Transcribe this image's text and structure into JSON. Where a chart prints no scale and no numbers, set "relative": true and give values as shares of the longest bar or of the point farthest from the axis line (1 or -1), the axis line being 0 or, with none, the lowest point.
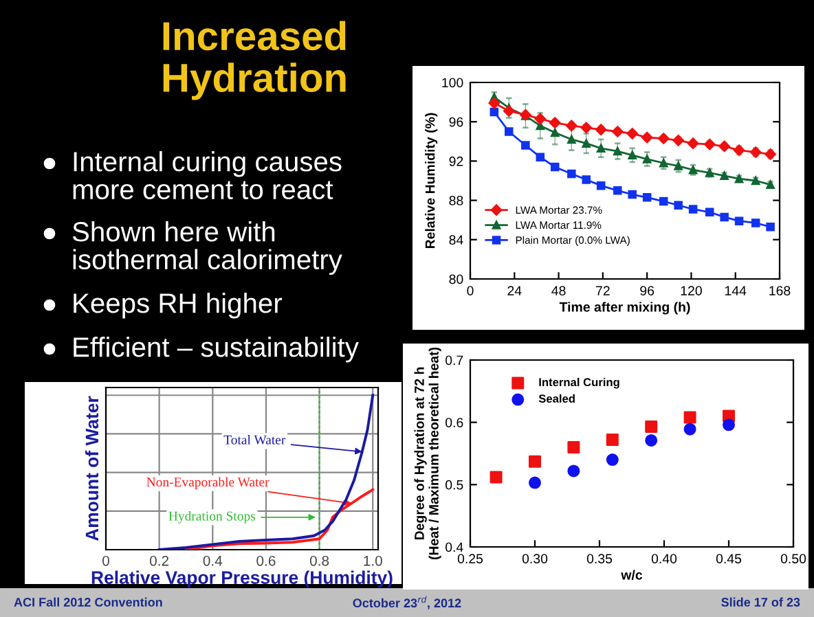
{
  "chart_data": [
    {
      "type": "other",
      "title": "Increased\nHydration",
      "annotations": [
        "Internal curing causes\nmore cement to react",
        "Shown here with\nisothermal calorimetry",
        "Keeps RH higher",
        "Efficient – sustainability",
        "ACI Fall 2012 Convention",
        "October 23$^{rd}$, 2012",
        "Slide 17 of 23"
      ]
    },
    {
      "type": "line",
      "xlabel": "Time after mixing (h)",
      "ylabel": "Relative Humidity (%)",
      "xlim": [
        0,
        168
      ],
      "xticks": [
        0,
        24,
        48,
        72,
        96,
        120,
        144,
        168
      ],
      "ylim": [
        80,
        100
      ],
      "yticks": [
        80,
        84,
        88,
        92,
        96,
        100
      ],
      "legend": "bottom left",
      "x": [
        13,
        21,
        30,
        38,
        46,
        55,
        63,
        71,
        80,
        88,
        96,
        105,
        113,
        121,
        130,
        138,
        146,
        155,
        163
      ],
      "series": [
        {
          "name": "LWA Mortar 23.7%",
          "color": "#ee1111",
          "marker": "diamond",
          "values": [
            97.9,
            97.1,
            96.7,
            96.3,
            95.9,
            95.6,
            95.4,
            95.2,
            95.0,
            94.8,
            94.4,
            94.3,
            94.1,
            93.8,
            93.7,
            93.5,
            93.1,
            92.9,
            92.7
          ],
          "errors": [
            0.3,
            0.3,
            0.3,
            0.3,
            0.3,
            0.3,
            0.3,
            0.3,
            0.3,
            0.3,
            0.3,
            0.3,
            0.3,
            0.3,
            0.3,
            0.3,
            0.4,
            0.4,
            0.4
          ]
        },
        {
          "name": "LWA Mortar 11.9%",
          "color": "#116633",
          "marker": "triangle",
          "values": [
            98.5,
            97.4,
            96.6,
            95.6,
            94.9,
            94.2,
            93.8,
            93.3,
            93.0,
            92.6,
            92.2,
            91.8,
            91.5,
            91.1,
            90.8,
            90.5,
            90.2,
            90.0,
            89.6
          ],
          "errors": [
            0.5,
            1.0,
            1.2,
            1.3,
            1.2,
            1.1,
            1.0,
            0.9,
            0.8,
            0.7,
            0.7,
            0.6,
            0.6,
            0.5,
            0.4,
            0.3,
            0.3,
            0.3,
            0.3
          ]
        },
        {
          "name": "Plain Mortar (0.0% LWA)",
          "color": "#1133ee",
          "marker": "square",
          "values": [
            97.0,
            95.0,
            93.6,
            92.4,
            91.4,
            90.7,
            90.1,
            89.5,
            89.0,
            88.6,
            88.3,
            87.9,
            87.5,
            87.1,
            86.8,
            86.3,
            85.9,
            85.7,
            85.3
          ],
          "errors": [
            0.3,
            0.3,
            0.3,
            0.3,
            0.3,
            0.3,
            0.3,
            0.3,
            0.3,
            0.3,
            0.3,
            0.3,
            0.3,
            0.3,
            0.3,
            0.3,
            0.3,
            0.3,
            0.3
          ]
        }
      ]
    },
    {
      "type": "line",
      "relative": true,
      "xlabel": "Relative Vapor Pressure (Humidity)",
      "ylabel": "Amount of Water",
      "xlim": [
        0,
        1.02
      ],
      "xticks": [
        0,
        0.2,
        0.4,
        0.6,
        0.8,
        {
          "value": 1.0,
          "label": "1.0"
        }
      ],
      "tick_labels": "x",
      "grid": true,
      "ref_lines": [
        {
          "axis": "x",
          "value": 0.8,
          "label": "Hydration Stops",
          "color": "#33bb33",
          "line_style": "dotted"
        }
      ],
      "series": [
        {
          "name": "Total Water",
          "color": "#1a1aa0",
          "x": [
            0.2,
            0.3,
            0.4,
            0.5,
            0.6,
            0.7,
            0.78,
            0.82,
            0.85,
            0.88,
            0.9,
            0.93,
            0.96,
            0.98,
            1.0
          ],
          "values": [
            0,
            0.014,
            0.034,
            0.054,
            0.062,
            0.07,
            0.09,
            0.127,
            0.183,
            0.268,
            0.324,
            0.45,
            0.634,
            0.775,
            1.0
          ]
        },
        {
          "name": "Non-Evaporable Water",
          "color": "#ff1a1a",
          "x": [
            0.3,
            0.4,
            0.5,
            0.6,
            0.7,
            0.8,
            0.83,
            0.85,
            0.88,
            0.92,
            0.96,
            1.0
          ],
          "values": [
            0,
            0.025,
            0.039,
            0.042,
            0.048,
            0.07,
            0.127,
            0.211,
            0.254,
            0.3,
            0.346,
            0.389
          ]
        }
      ]
    },
    {
      "type": "scatter",
      "xlabel": "w/c",
      "ylabel": "Degree of Hydration at 72 h\n(Heat / Maximum theoretical heat)",
      "xlim": [
        0.25,
        0.5
      ],
      "xticks": [
        0.25,
        {
          "value": 0.3,
          "label": "0.30"
        },
        0.35,
        {
          "value": 0.4,
          "label": "0.40"
        },
        0.45,
        {
          "value": 0.5,
          "label": "0.50"
        }
      ],
      "ylim": [
        0.4,
        0.7
      ],
      "yticks": [
        0.4,
        0.5,
        0.6,
        0.7
      ],
      "legend": "top left",
      "series": [
        {
          "name": "Internal Curing",
          "color": "#ee1111",
          "marker": "square",
          "x": [
            0.27,
            0.3,
            0.33,
            0.36,
            0.39,
            0.42,
            0.45
          ],
          "values": [
            0.512,
            0.537,
            0.56,
            0.572,
            0.593,
            0.608,
            0.61
          ]
        },
        {
          "name": "Sealed",
          "color": "#1111ee",
          "marker": "circle",
          "x": [
            0.3,
            0.33,
            0.36,
            0.39,
            0.42,
            0.45
          ],
          "values": [
            0.503,
            0.522,
            0.54,
            0.571,
            0.589,
            0.596
          ]
        }
      ]
    }
  ]
}
